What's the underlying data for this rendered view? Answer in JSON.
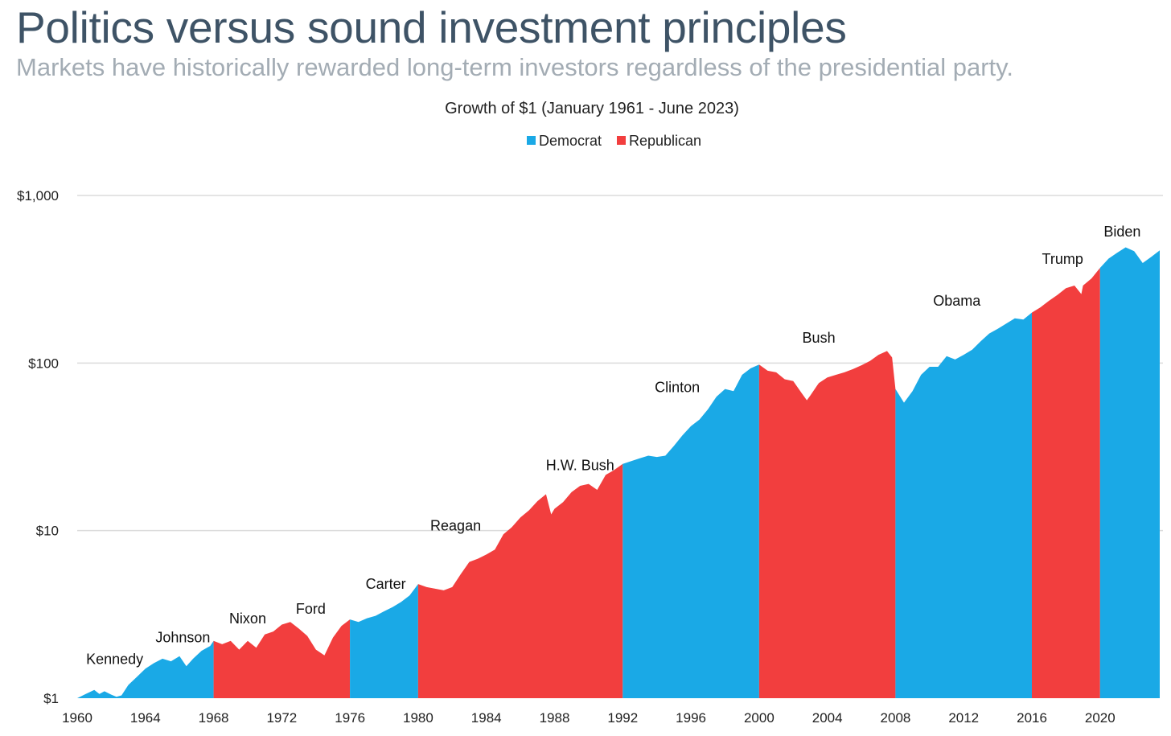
{
  "header": {
    "title": "Politics versus sound investment principles",
    "subtitle": "Markets have historically rewarded long-term investors regardless of the presidential party."
  },
  "chart_data": {
    "type": "area",
    "title": "Growth of $1 (January 1961 - June 2023)",
    "xlabel": "",
    "ylabel": "",
    "y_scale": "log",
    "ylim": [
      1,
      1000
    ],
    "xlim": [
      1960,
      2023.5
    ],
    "y_ticks": [
      {
        "value": 1,
        "label": "$1"
      },
      {
        "value": 10,
        "label": "$10"
      },
      {
        "value": 100,
        "label": "$100"
      },
      {
        "value": 1000,
        "label": "$1,000"
      }
    ],
    "x_ticks": [
      1960,
      1964,
      1968,
      1972,
      1976,
      1980,
      1984,
      1988,
      1992,
      1996,
      2000,
      2004,
      2008,
      2012,
      2016,
      2020
    ],
    "grid": "horizontal",
    "legend_position": "top-center",
    "colors": {
      "Democrat": "#1aa9e6",
      "Republican": "#f23e3e"
    },
    "legend": [
      "Democrat",
      "Republican"
    ],
    "series": [
      {
        "name": "Democrat",
        "x": [
          1960.0,
          1960.5,
          1961.0,
          1961.3,
          1961.6,
          1962.0,
          1962.3,
          1962.6,
          1963.0,
          1963.5,
          1964.0,
          1964.5,
          1965.0,
          1965.5,
          1966.0,
          1966.4,
          1966.8,
          1967.3,
          1967.8,
          1968.0
        ],
        "values": [
          1.0,
          1.06,
          1.12,
          1.06,
          1.1,
          1.05,
          1.02,
          1.04,
          1.2,
          1.34,
          1.5,
          1.62,
          1.72,
          1.66,
          1.78,
          1.55,
          1.72,
          1.92,
          2.05,
          2.2
        ]
      },
      {
        "name": "Republican",
        "x": [
          1968.0,
          1968.5,
          1969.0,
          1969.5,
          1970.0,
          1970.5,
          1971.0,
          1971.5,
          1972.0,
          1972.5,
          1973.0,
          1973.5,
          1974.0,
          1974.5,
          1975.0,
          1975.5,
          1976.0
        ],
        "values": [
          2.2,
          2.1,
          2.2,
          1.95,
          2.2,
          2.0,
          2.4,
          2.5,
          2.75,
          2.85,
          2.6,
          2.35,
          1.95,
          1.8,
          2.3,
          2.7,
          2.95
        ]
      },
      {
        "name": "Democrat",
        "x": [
          1976.0,
          1976.5,
          1977.0,
          1977.5,
          1978.0,
          1978.5,
          1979.0,
          1979.5,
          1980.0
        ],
        "values": [
          2.95,
          2.85,
          3.0,
          3.1,
          3.3,
          3.5,
          3.75,
          4.1,
          4.8
        ]
      },
      {
        "name": "Republican",
        "x": [
          1980.0,
          1980.5,
          1981.0,
          1981.5,
          1982.0,
          1982.5,
          1983.0,
          1983.5,
          1984.0,
          1984.5,
          1985.0,
          1985.5,
          1986.0,
          1986.5,
          1987.0,
          1987.5,
          1987.8,
          1988.0,
          1988.5,
          1989.0,
          1989.5,
          1990.0,
          1990.5,
          1991.0,
          1991.5,
          1992.0
        ],
        "values": [
          4.8,
          4.6,
          4.5,
          4.4,
          4.6,
          5.5,
          6.5,
          6.8,
          7.2,
          7.7,
          9.5,
          10.5,
          12.0,
          13.2,
          15.0,
          16.5,
          12.5,
          13.5,
          14.8,
          17.0,
          18.5,
          19.0,
          17.5,
          21.5,
          23.0,
          25.0
        ]
      },
      {
        "name": "Democrat",
        "x": [
          1992.0,
          1992.5,
          1993.0,
          1993.5,
          1994.0,
          1994.5,
          1995.0,
          1995.5,
          1996.0,
          1996.5,
          1997.0,
          1997.5,
          1998.0,
          1998.5,
          1999.0,
          1999.5,
          2000.0
        ],
        "values": [
          25.0,
          26.0,
          27.0,
          28.0,
          27.5,
          28.0,
          32.0,
          37.0,
          42.0,
          46.0,
          53.0,
          63.0,
          70.0,
          68.0,
          85.0,
          93.0,
          98.0
        ]
      },
      {
        "name": "Republican",
        "x": [
          2000.0,
          2000.5,
          2001.0,
          2001.5,
          2002.0,
          2002.5,
          2002.8,
          2003.0,
          2003.5,
          2004.0,
          2004.5,
          2005.0,
          2005.5,
          2006.0,
          2006.5,
          2007.0,
          2007.5,
          2007.8,
          2008.0
        ],
        "values": [
          98.0,
          90.0,
          88.0,
          80.0,
          78.0,
          66.0,
          60.0,
          64.0,
          76.0,
          82.0,
          85.0,
          88.0,
          92.0,
          97.0,
          103.0,
          112.0,
          118.0,
          108.0,
          70.0
        ]
      },
      {
        "name": "Democrat",
        "x": [
          2008.0,
          2008.5,
          2009.0,
          2009.5,
          2010.0,
          2010.5,
          2011.0,
          2011.5,
          2012.0,
          2012.5,
          2013.0,
          2013.5,
          2014.0,
          2014.5,
          2015.0,
          2015.5,
          2016.0
        ],
        "values": [
          70.0,
          58.0,
          68.0,
          85.0,
          95.0,
          95.0,
          110.0,
          105.0,
          112.0,
          120.0,
          135.0,
          150.0,
          160.0,
          172.0,
          185.0,
          182.0,
          200.0
        ]
      },
      {
        "name": "Republican",
        "x": [
          2016.0,
          2016.5,
          2017.0,
          2017.5,
          2018.0,
          2018.5,
          2018.9,
          2019.0,
          2019.5,
          2020.0
        ],
        "values": [
          200.0,
          215.0,
          235.0,
          255.0,
          280.0,
          290.0,
          258.0,
          290.0,
          320.0,
          370.0
        ]
      },
      {
        "name": "Democrat",
        "x": [
          2020.0,
          2020.5,
          2021.0,
          2021.5,
          2022.0,
          2022.5,
          2023.0,
          2023.5
        ],
        "values": [
          370.0,
          420.0,
          455.0,
          490.0,
          465.0,
          395.0,
          430.0,
          470.0
        ]
      }
    ],
    "annotations": [
      {
        "text": "Kennedy",
        "x": 1962.2,
        "y": 1.6
      },
      {
        "text": "Johnson",
        "x": 1966.2,
        "y": 2.15
      },
      {
        "text": "Nixon",
        "x": 1970.0,
        "y": 2.8
      },
      {
        "text": "Ford",
        "x": 1973.7,
        "y": 3.2
      },
      {
        "text": "Carter",
        "x": 1978.1,
        "y": 4.5
      },
      {
        "text": "Reagan",
        "x": 1982.2,
        "y": 10.0
      },
      {
        "text": "H.W. Bush",
        "x": 1989.5,
        "y": 23.0
      },
      {
        "text": "Clinton",
        "x": 1995.2,
        "y": 67.0
      },
      {
        "text": "Bush",
        "x": 2003.5,
        "y": 132.0
      },
      {
        "text": "Obama",
        "x": 2011.6,
        "y": 220.0
      },
      {
        "text": "Trump",
        "x": 2017.8,
        "y": 390.0
      },
      {
        "text": "Biden",
        "x": 2021.3,
        "y": 570.0
      }
    ]
  }
}
